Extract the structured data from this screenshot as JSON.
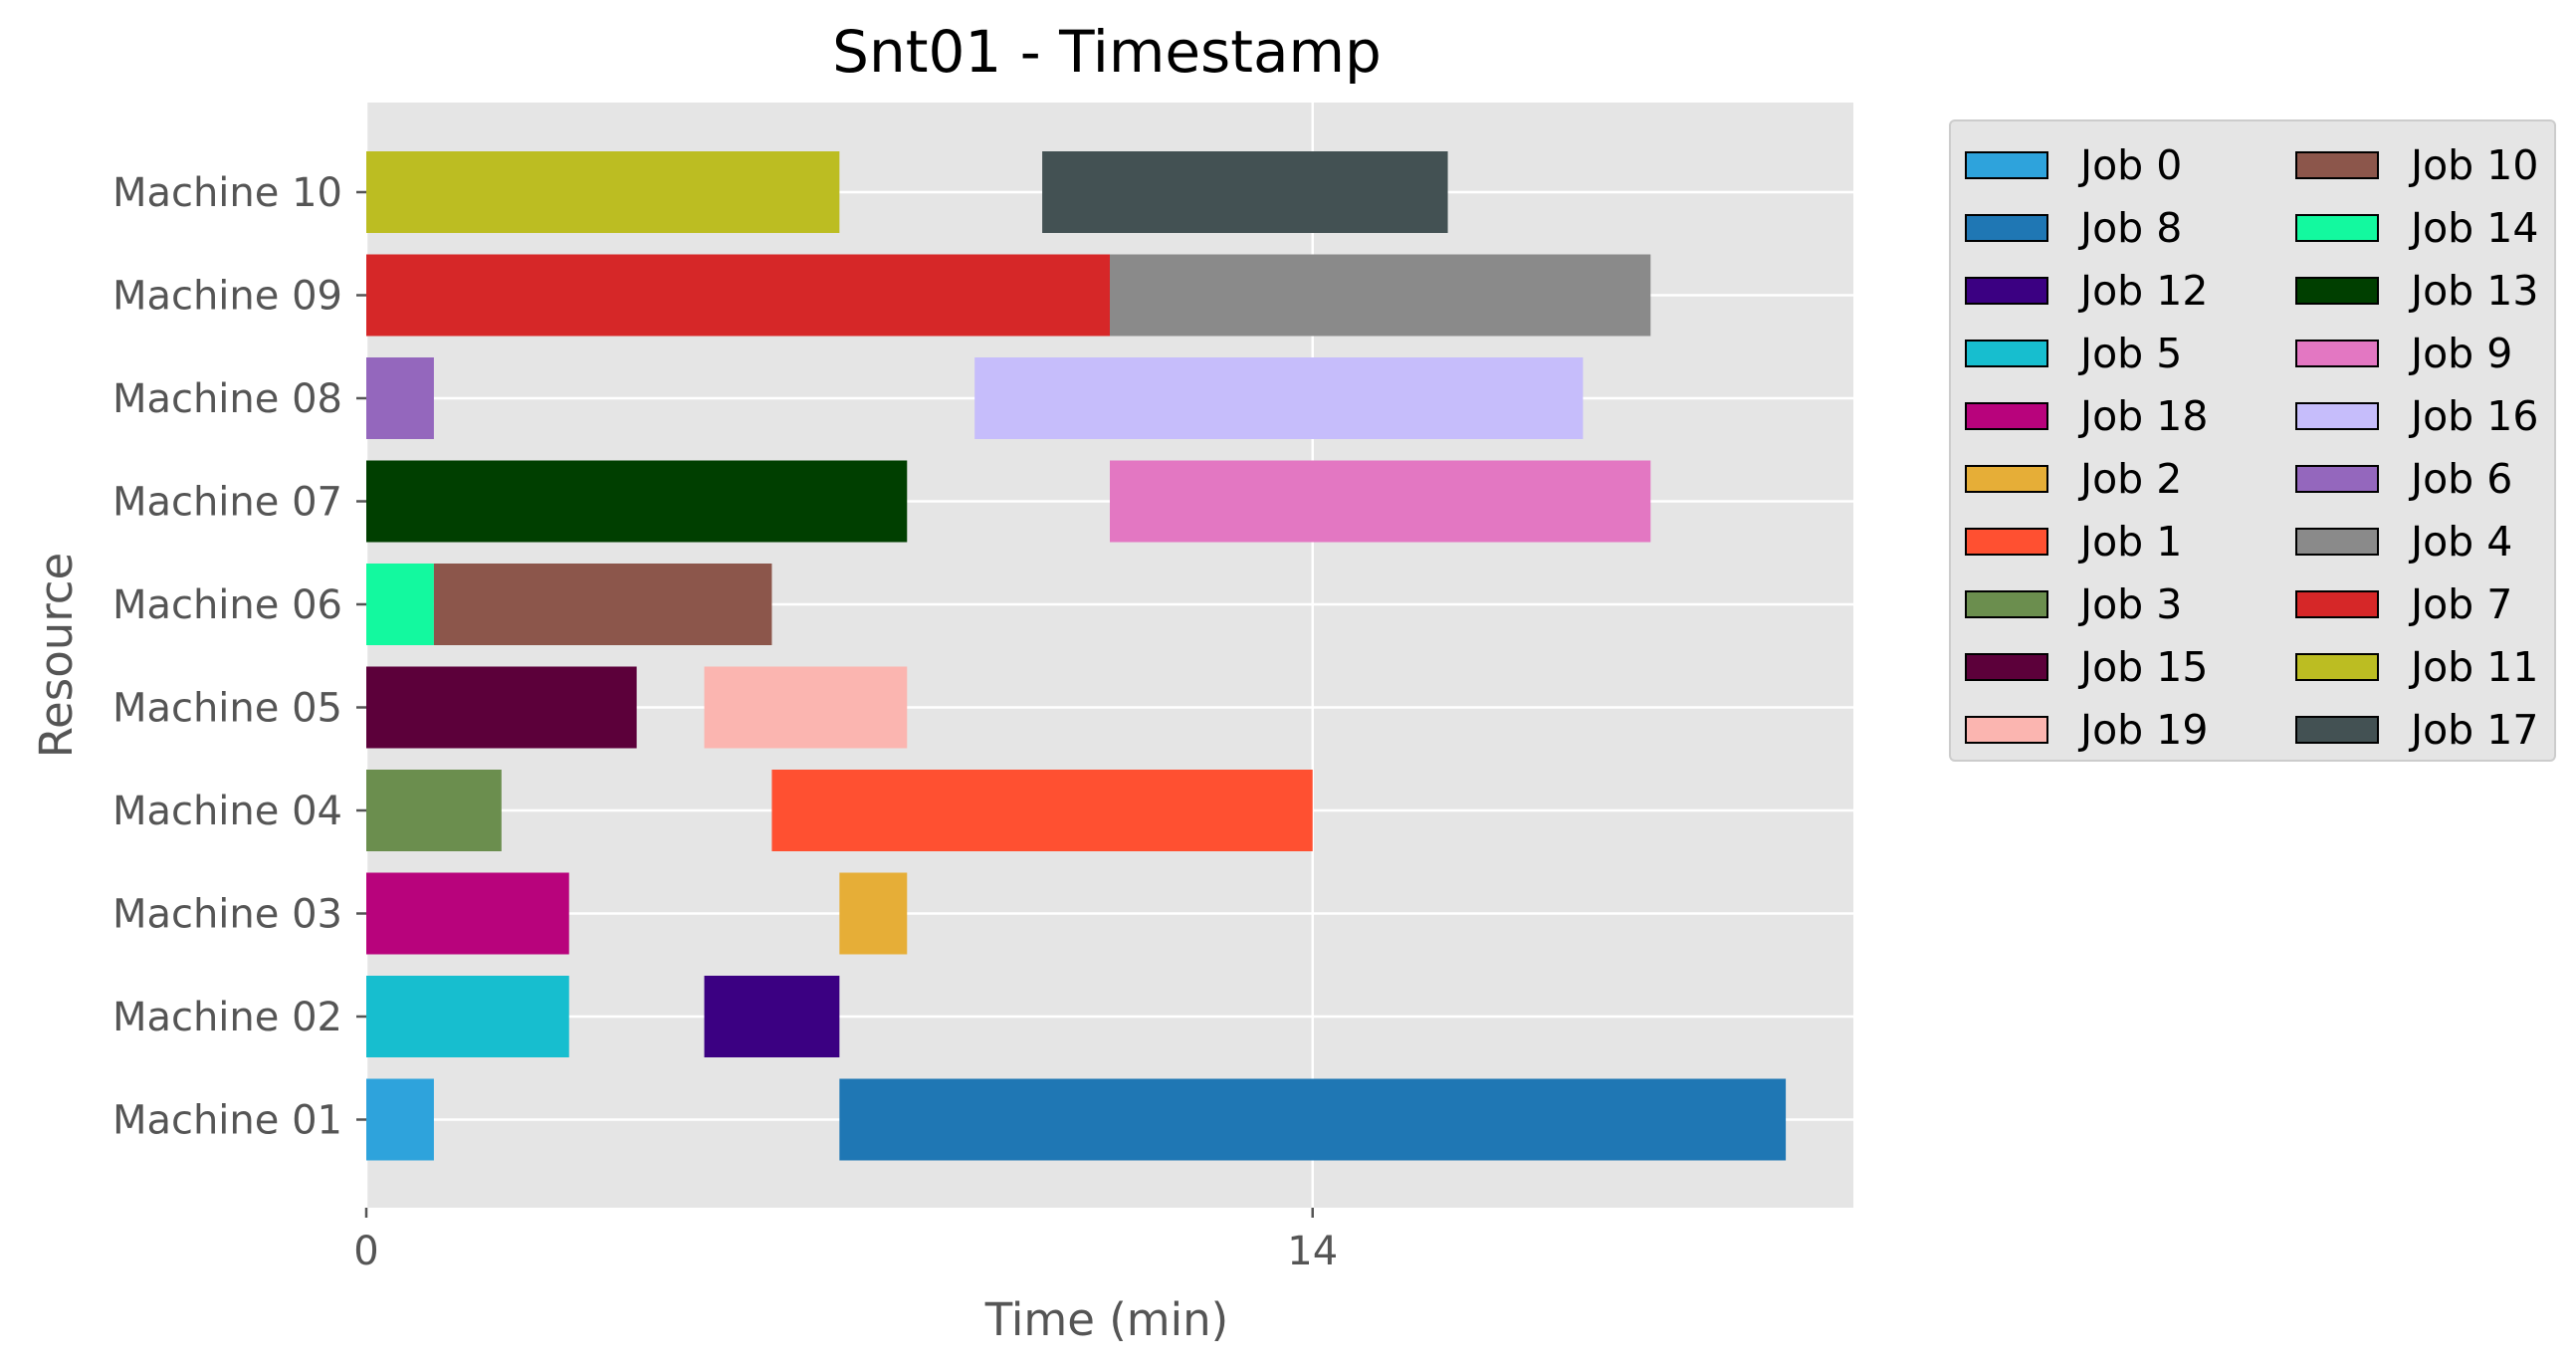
{
  "chart_data": {
    "type": "gantt",
    "title": "Snt01 - Timestamp",
    "xlabel": "Time (min)",
    "ylabel": "Resource",
    "xlim": [
      0,
      22
    ],
    "xticks": [
      0,
      14
    ],
    "xtick_labels": [
      "0",
      "14"
    ],
    "grid": true,
    "legend_position": "outside-right",
    "resources": [
      "Machine 01",
      "Machine 02",
      "Machine 03",
      "Machine 04",
      "Machine 05",
      "Machine 06",
      "Machine 07",
      "Machine 08",
      "Machine 09",
      "Machine 10"
    ],
    "tasks": [
      {
        "resource": "Machine 01",
        "job": "Job 0",
        "start": 0,
        "end": 1
      },
      {
        "resource": "Machine 01",
        "job": "Job 8",
        "start": 7,
        "end": 21
      },
      {
        "resource": "Machine 02",
        "job": "Job 5",
        "start": 0,
        "end": 3
      },
      {
        "resource": "Machine 02",
        "job": "Job 12",
        "start": 5,
        "end": 7
      },
      {
        "resource": "Machine 03",
        "job": "Job 18",
        "start": 0,
        "end": 3
      },
      {
        "resource": "Machine 03",
        "job": "Job 2",
        "start": 7,
        "end": 8
      },
      {
        "resource": "Machine 04",
        "job": "Job 3",
        "start": 0,
        "end": 2
      },
      {
        "resource": "Machine 04",
        "job": "Job 1",
        "start": 6,
        "end": 14
      },
      {
        "resource": "Machine 05",
        "job": "Job 15",
        "start": 0,
        "end": 4
      },
      {
        "resource": "Machine 05",
        "job": "Job 19",
        "start": 5,
        "end": 8
      },
      {
        "resource": "Machine 06",
        "job": "Job 14",
        "start": 0,
        "end": 1
      },
      {
        "resource": "Machine 06",
        "job": "Job 10",
        "start": 1,
        "end": 6
      },
      {
        "resource": "Machine 07",
        "job": "Job 13",
        "start": 0,
        "end": 8
      },
      {
        "resource": "Machine 07",
        "job": "Job 9",
        "start": 11,
        "end": 19
      },
      {
        "resource": "Machine 08",
        "job": "Job 6",
        "start": 0,
        "end": 1
      },
      {
        "resource": "Machine 08",
        "job": "Job 16",
        "start": 9,
        "end": 18
      },
      {
        "resource": "Machine 09",
        "job": "Job 7",
        "start": 0,
        "end": 11
      },
      {
        "resource": "Machine 09",
        "job": "Job 4",
        "start": 11,
        "end": 19
      },
      {
        "resource": "Machine 10",
        "job": "Job 11",
        "start": 0,
        "end": 7
      },
      {
        "resource": "Machine 10",
        "job": "Job 17",
        "start": 10,
        "end": 16
      }
    ],
    "legend": [
      {
        "label": "Job 0",
        "color": "#2ea3dc"
      },
      {
        "label": "Job 8",
        "color": "#1f77b4"
      },
      {
        "label": "Job 12",
        "color": "#3b0082"
      },
      {
        "label": "Job 5",
        "color": "#17becf"
      },
      {
        "label": "Job 18",
        "color": "#b8037c"
      },
      {
        "label": "Job 2",
        "color": "#e6ae37"
      },
      {
        "label": "Job 1",
        "color": "#ff5031"
      },
      {
        "label": "Job 3",
        "color": "#6b8e4e"
      },
      {
        "label": "Job 15",
        "color": "#5c003a"
      },
      {
        "label": "Job 19",
        "color": "#fbb5b0"
      },
      {
        "label": "Job 10",
        "color": "#8c564b"
      },
      {
        "label": "Job 14",
        "color": "#13f99f"
      },
      {
        "label": "Job 13",
        "color": "#003f00"
      },
      {
        "label": "Job 9",
        "color": "#e377c2"
      },
      {
        "label": "Job 16",
        "color": "#c6bdfb"
      },
      {
        "label": "Job 6",
        "color": "#9467bd"
      },
      {
        "label": "Job 4",
        "color": "#8a8a8a"
      },
      {
        "label": "Job 7",
        "color": "#d62728"
      },
      {
        "label": "Job 11",
        "color": "#bcbd22"
      },
      {
        "label": "Job 17",
        "color": "#435153"
      }
    ]
  }
}
